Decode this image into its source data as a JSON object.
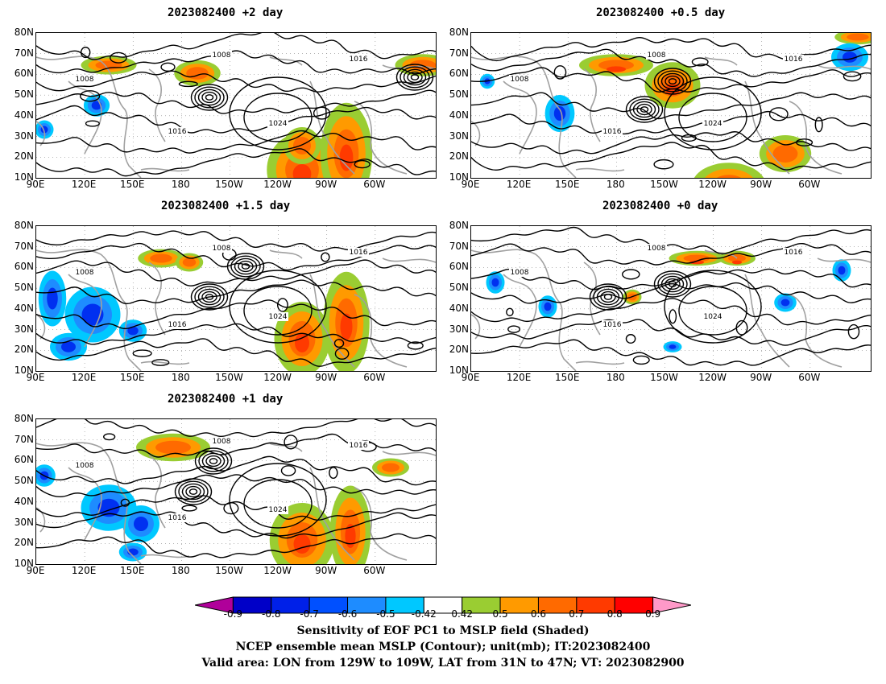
{
  "panels": [
    {
      "title": "2023082400 +2 day"
    },
    {
      "title": "2023082400 +0.5 day"
    },
    {
      "title": "2023082400 +1.5 day"
    },
    {
      "title": "2023082400 +0 day"
    },
    {
      "title": "2023082400 +1 day"
    }
  ],
  "axes": {
    "y_ticks": [
      "80N",
      "70N",
      "60N",
      "50N",
      "40N",
      "30N",
      "20N",
      "10N"
    ],
    "x_ticks": [
      "90E",
      "120E",
      "150E",
      "180",
      "150W",
      "120W",
      "90W",
      "60W"
    ]
  },
  "contour_labels": [
    "1008",
    "1016",
    "1024"
  ],
  "colorbar": {
    "labels": [
      "-0.9",
      "-0.8",
      "-0.7",
      "-0.6",
      "-0.5",
      "-0.42",
      "0.42",
      "0.5",
      "0.6",
      "0.7",
      "0.8",
      "0.9"
    ],
    "colors": [
      "#b0009a",
      "#0000c8",
      "#0020e8",
      "#0050ff",
      "#1e8cff",
      "#00c8ff",
      "#ffffff",
      "#9acd32",
      "#ff9a00",
      "#ff6a00",
      "#ff3a00",
      "#ff0000",
      "#ff99c8"
    ]
  },
  "captions": [
    "Sensitivity of EOF PC1 to MSLP field (Shaded)",
    "NCEP ensemble mean MSLP (Contour); unit(mb); IT:2023082400",
    "Valid area: LON from 129W to 109W, LAT from 31N to 47N; VT: 2023082900"
  ]
}
